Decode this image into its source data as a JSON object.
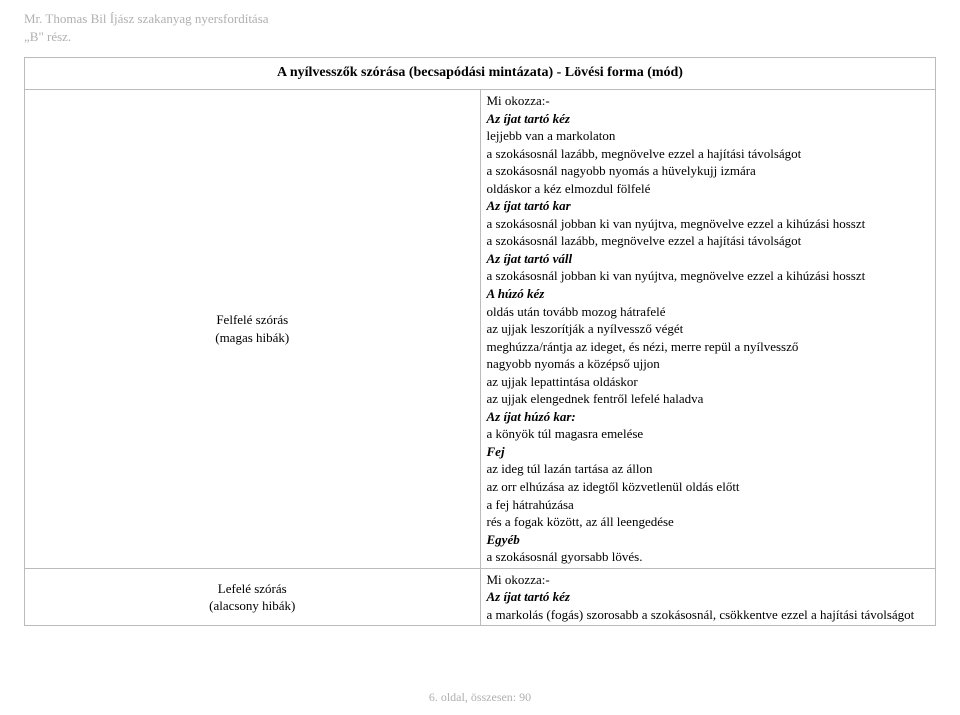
{
  "header": {
    "line1": "Mr. Thomas Bil Íjász szakanyag nyersfordítása",
    "line2": "„B\" rész."
  },
  "table": {
    "title": "A nyílvesszők szórása (becsapódási mintázata)  -  Lövési forma (mód)",
    "rows": [
      {
        "label_l1": "Felfelé szórás",
        "label_l2": "(magas hibák)",
        "lines": [
          {
            "cls": "",
            "t": "Mi okozza:-"
          },
          {
            "cls": "bi",
            "t": "Az íjat tartó kéz"
          },
          {
            "cls": "",
            "t": "lejjebb van a markolaton"
          },
          {
            "cls": "",
            "t": "a szokásosnál lazább, megnövelve ezzel a hajítási távolságot"
          },
          {
            "cls": "",
            "t": "a szokásosnál nagyobb nyomás a hüvelykujj izmára"
          },
          {
            "cls": "",
            "t": "oldáskor a kéz elmozdul fölfelé"
          },
          {
            "cls": "bi",
            "t": "Az íjat tartó kar"
          },
          {
            "cls": "",
            "t": "a szokásosnál jobban ki van nyújtva, megnövelve ezzel a kihúzási hosszt"
          },
          {
            "cls": "",
            "t": "a szokásosnál lazább, megnövelve ezzel a hajítási távolságot"
          },
          {
            "cls": "bi",
            "t": "Az íjat tartó váll"
          },
          {
            "cls": "",
            "t": "a szokásosnál jobban ki van nyújtva, megnövelve ezzel a kihúzási hosszt"
          },
          {
            "cls": "bi",
            "t": "A húzó kéz"
          },
          {
            "cls": "",
            "t": "oldás után tovább mozog hátrafelé"
          },
          {
            "cls": "",
            "t": "az ujjak leszorítják a nyílvessző végét"
          },
          {
            "cls": "",
            "t": "meghúzza/rántja az ideget, és nézi, merre repül a nyílvessző"
          },
          {
            "cls": "",
            "t": "nagyobb nyomás a középső ujjon"
          },
          {
            "cls": "",
            "t": "az ujjak lepattintása oldáskor"
          },
          {
            "cls": "",
            "t": "az ujjak elengednek fentről lefelé haladva"
          },
          {
            "cls": "bi",
            "t": "Az íjat húzó kar:"
          },
          {
            "cls": "",
            "t": "a könyök túl magasra emelése"
          },
          {
            "cls": "bi",
            "t": "Fej"
          },
          {
            "cls": "",
            "t": "az ideg túl lazán tartása az állon"
          },
          {
            "cls": "",
            "t": "az orr elhúzása az idegtől közvetlenül oldás előtt"
          },
          {
            "cls": "",
            "t": "a fej hátrahúzása"
          },
          {
            "cls": "",
            "t": "rés a fogak között, az áll leengedése"
          },
          {
            "cls": "bi",
            "t": "Egyéb"
          },
          {
            "cls": "",
            "t": "a szokásosnál gyorsabb lövés."
          }
        ]
      },
      {
        "label_l1": "Lefelé szórás",
        "label_l2": "(alacsony hibák)",
        "lines": [
          {
            "cls": "",
            "t": "Mi okozza:-"
          },
          {
            "cls": "bi",
            "t": "Az íjat tartó kéz"
          },
          {
            "cls": "",
            "t": "a markolás (fogás) szorosabb a szokásosnál, csökkentve ezzel a hajítási távolságot"
          }
        ]
      }
    ]
  },
  "footer": "6. oldal, összesen: 90"
}
